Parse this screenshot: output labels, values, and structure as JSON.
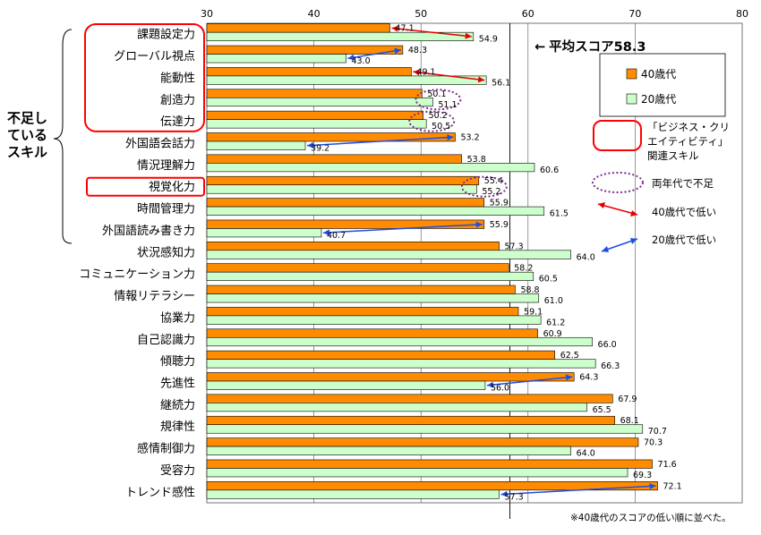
{
  "chart_data": {
    "type": "bar",
    "orientation": "horizontal",
    "categories": [
      "課題設定力",
      "グローバル視点",
      "能動性",
      "創造力",
      "伝達力",
      "外国語会話力",
      "情況理解力",
      "視覚化力",
      "時間管理力",
      "外国語読み書き力",
      "状況感知力",
      "コミュニケーション力",
      "情報リテラシー",
      "協業力",
      "自己認識力",
      "傾聴力",
      "先進性",
      "継続力",
      "規律性",
      "感情制御力",
      "受容力",
      "トレンド感性"
    ],
    "series": [
      {
        "name": "40歳代",
        "color": "#FF8C00",
        "values": [
          47.1,
          48.3,
          49.1,
          50.1,
          50.2,
          53.2,
          53.8,
          55.4,
          55.9,
          55.9,
          57.3,
          58.2,
          58.8,
          59.1,
          60.9,
          62.5,
          64.3,
          67.9,
          68.1,
          70.3,
          71.6,
          72.1
        ]
      },
      {
        "name": "20歳代",
        "color": "#CCFFCC",
        "values": [
          54.9,
          43.0,
          56.1,
          51.1,
          50.5,
          39.2,
          60.6,
          55.2,
          61.5,
          40.7,
          64.0,
          60.5,
          61.0,
          61.2,
          66.0,
          66.3,
          56.0,
          65.5,
          70.7,
          64.0,
          69.3,
          57.3
        ]
      }
    ],
    "value_labels": {
      "40歳代": [
        "47.1",
        "48.3",
        "49.1",
        "50.1",
        "50.2",
        "53.2",
        "53.8",
        "55.4",
        "55.9",
        "55.9",
        "57.3",
        "58.2",
        "58.8",
        "59.1",
        "60.9",
        "62.5",
        "64.3",
        "67.9",
        "68.1",
        "70.3",
        "71.6",
        "72.1"
      ],
      "20歳代": [
        "54.9",
        "43.0",
        "56.1",
        "51.1",
        "50.5",
        "39.2",
        "60.6",
        "55.2",
        "61.5",
        "40.7",
        "64.0",
        "60.5",
        "61.0",
        "61.2",
        "66.0",
        "66.3",
        "56.0",
        "65.5",
        "70.7",
        "64.0",
        "69.3",
        "57.3"
      ]
    },
    "xlim": [
      30,
      80
    ],
    "xticks": [
      "30",
      "40",
      "50",
      "60",
      "70",
      "80"
    ],
    "average": {
      "value": 58.3,
      "label": "平均スコア58.3",
      "arrow": "←"
    },
    "grid": true,
    "legend_position": "right",
    "legend": {
      "series_40": "40歳代",
      "series_20": "20歳代",
      "business_lines": [
        "「ビジネス・クリ",
        "エイティビティ」",
        "関連スキル"
      ],
      "both_short": "両年代で不足",
      "forty_low": "40歳代で低い",
      "twenty_low": "20歳代で低い"
    },
    "group_label_lines": [
      "不足し",
      "ている",
      "スキル"
    ],
    "highlighted_categories": [
      "課題設定力",
      "グローバル視点",
      "能動性",
      "創造力",
      "伝達力",
      "視覚化力"
    ],
    "both_short_categories": [
      "創造力",
      "伝達力",
      "視覚化力"
    ],
    "forty_low_categories": [
      "課題設定力",
      "能動性"
    ],
    "twenty_low_categories": [
      "グローバル視点",
      "外国語会話力",
      "外国語読み書き力",
      "先進性",
      "トレンド感性"
    ],
    "note": "※40歳代のスコアの低い順に並べた。"
  },
  "colors": {
    "highlight_box": "#FF0000",
    "both_short_ellipse": "#7B2C8C",
    "red_arrow": "#E60000",
    "blue_arrow": "#1F4FE0",
    "grid": "#555555"
  }
}
